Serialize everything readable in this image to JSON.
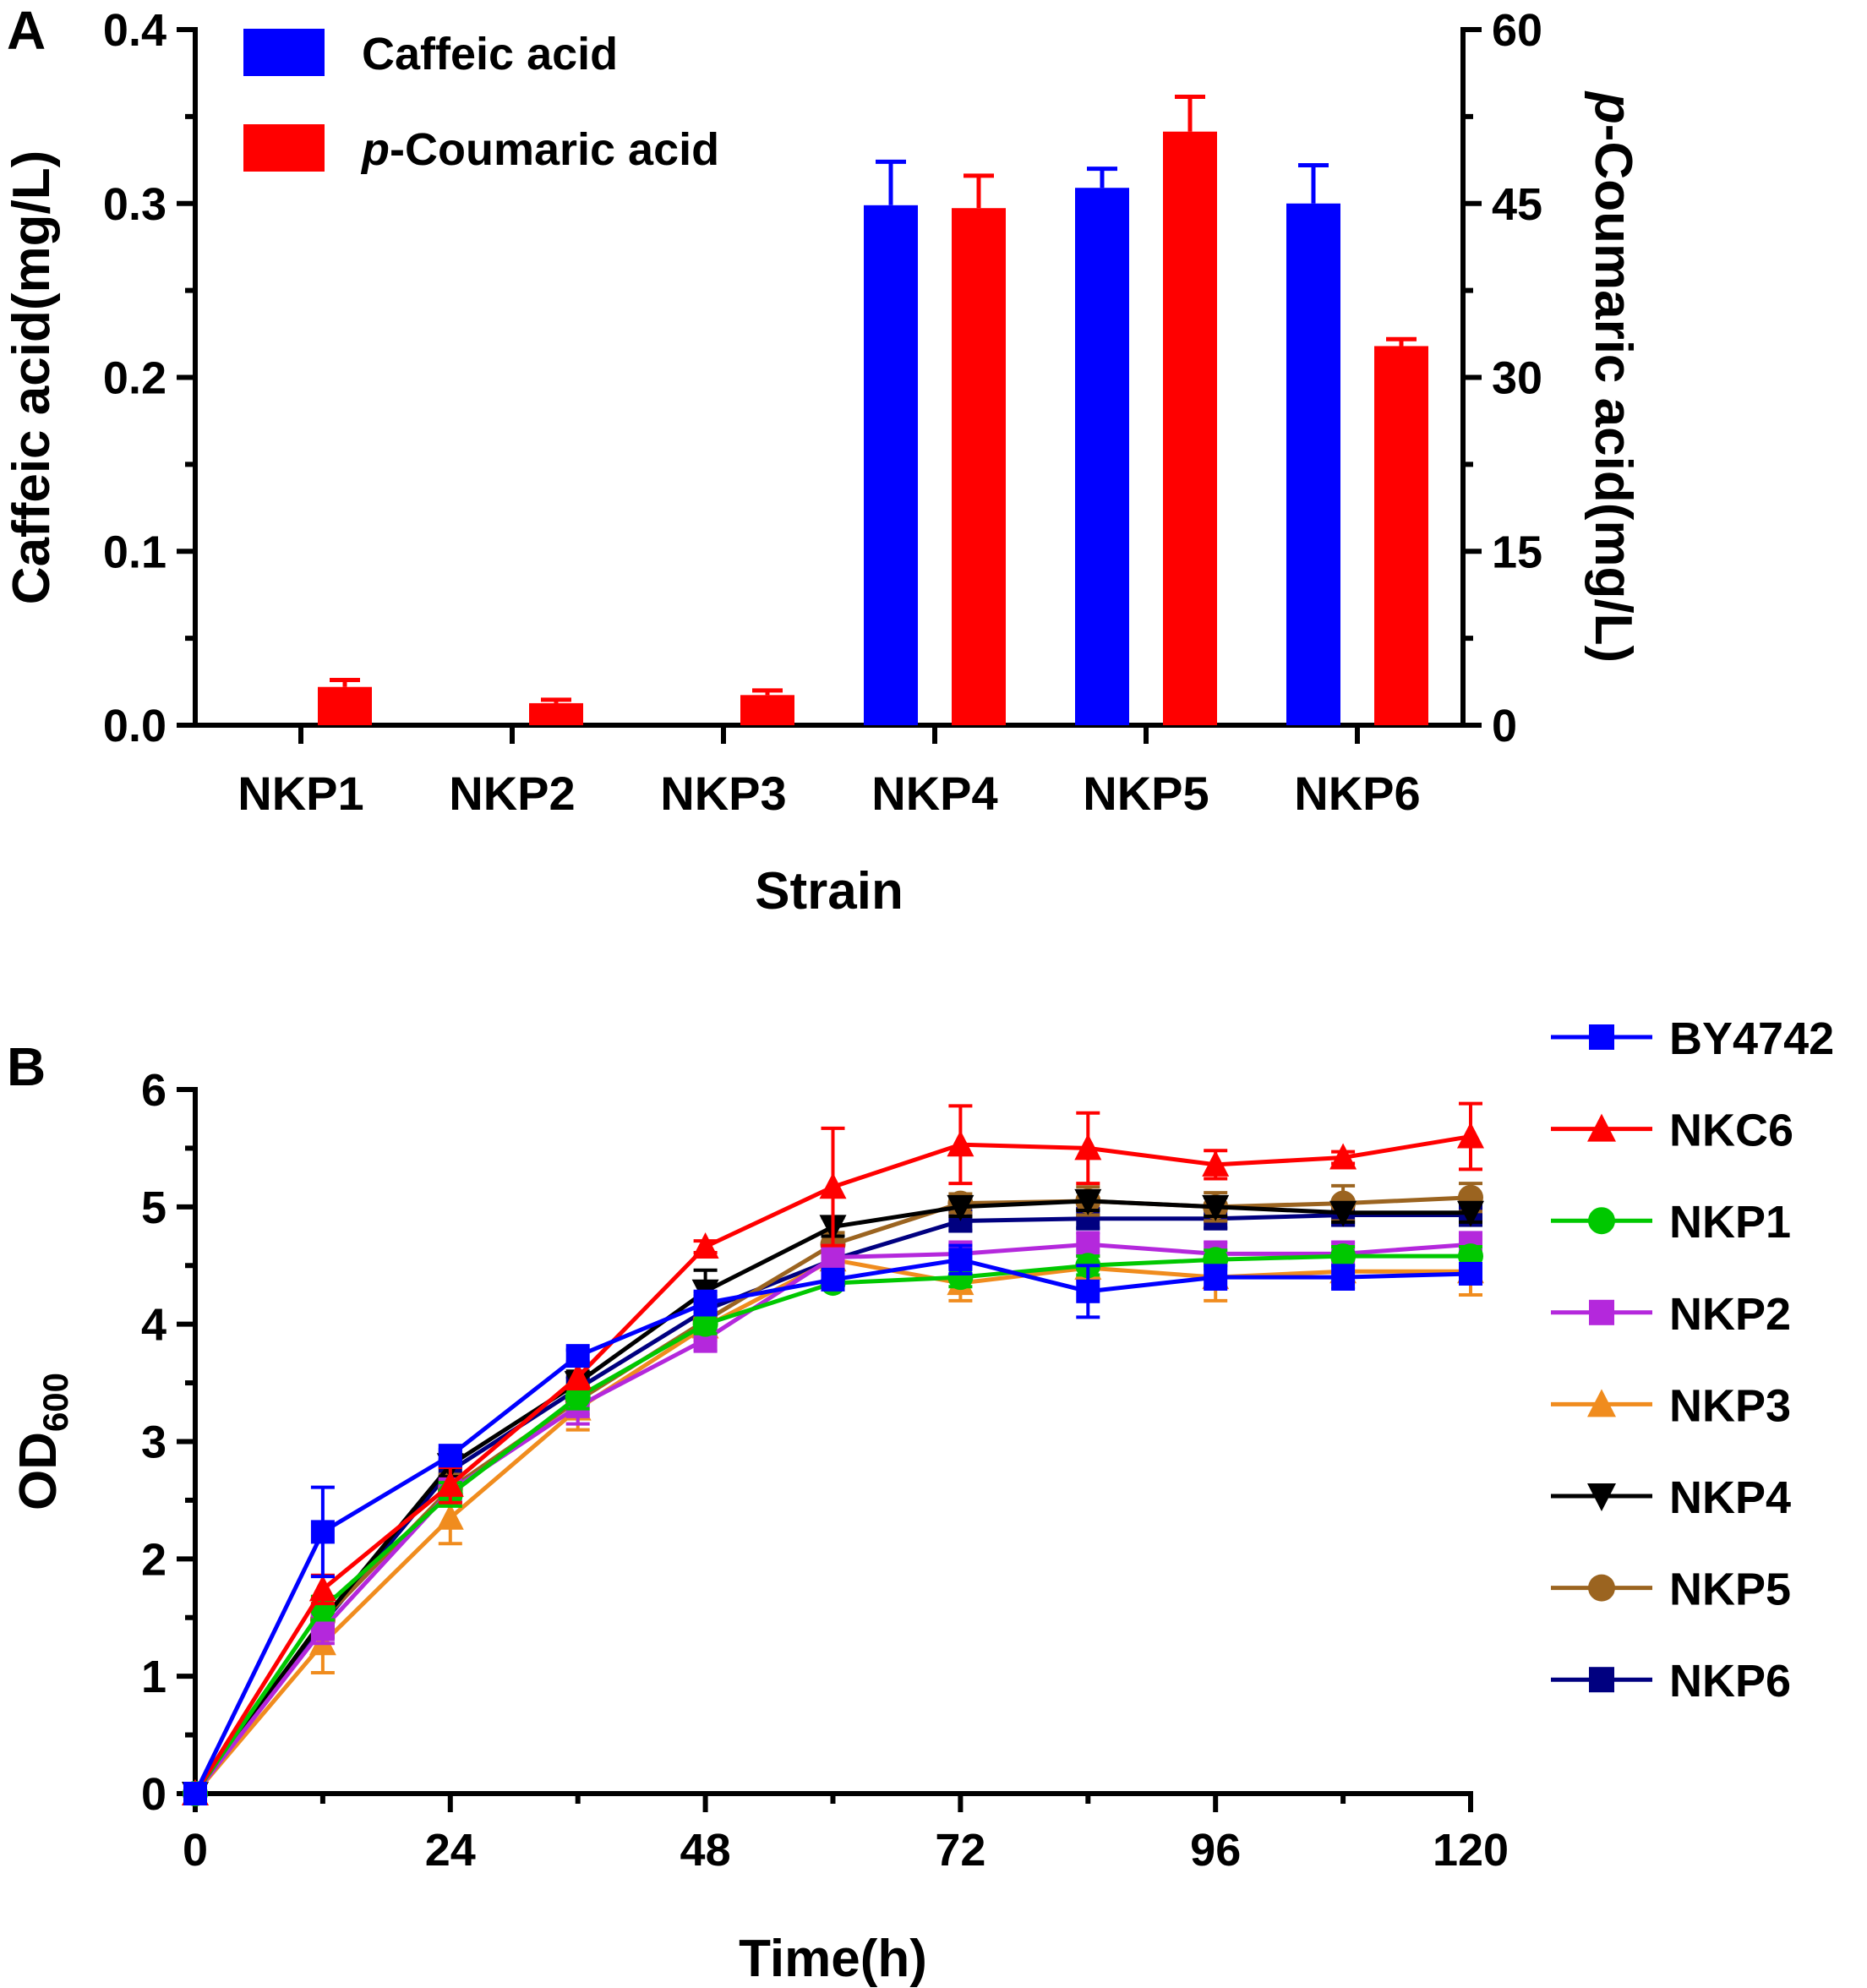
{
  "chart_data": [
    {
      "panel": "A",
      "type": "bar",
      "xlabel": "Strain",
      "ylabel": "Caffeic acid(mg/L)",
      "y2label": "p-Coumaric acid(mg/L)",
      "y2label_italic_prefix": "p",
      "y2label_rest": "-Coumaric acid(mg/L)",
      "ylim": [
        0,
        0.4
      ],
      "yticks": [
        "0.0",
        "0.1",
        "0.2",
        "0.3",
        "0.4"
      ],
      "y2lim": [
        0,
        60
      ],
      "y2ticks": [
        "0",
        "15",
        "30",
        "45",
        "60"
      ],
      "categories": [
        "NKP1",
        "NKP2",
        "NKP3",
        "NKP4",
        "NKP5",
        "NKP6"
      ],
      "series": [
        {
          "name": "Caffeic acid",
          "name_italic_prefix": "",
          "name_rest": "Caffeic acid",
          "axis": "left",
          "color": "#0000ff",
          "values": [
            0,
            0,
            0,
            0.299,
            0.309,
            0.3
          ],
          "errors": [
            0,
            0,
            0,
            0.025,
            0.011,
            0.022
          ]
        },
        {
          "name": "p-Coumaric acid",
          "name_italic_prefix": "p",
          "name_rest": "-Coumaric acid",
          "axis": "right",
          "color": "#ff0000",
          "values": [
            3.3,
            1.9,
            2.6,
            44.6,
            51.2,
            32.7
          ],
          "errors": [
            0.6,
            0.3,
            0.4,
            2.8,
            3.0,
            0.6
          ]
        }
      ],
      "legend_position": "top-left"
    },
    {
      "panel": "B",
      "type": "line",
      "xlabel": "Time(h)",
      "ylabel": "OD",
      "ylabel_sub": "600",
      "xlim": [
        0,
        120
      ],
      "xticks": [
        "0",
        "24",
        "48",
        "72",
        "96",
        "120"
      ],
      "ylim": [
        0,
        6
      ],
      "yticks": [
        "0",
        "1",
        "2",
        "3",
        "4",
        "5",
        "6"
      ],
      "x": [
        0,
        12,
        24,
        36,
        48,
        60,
        72,
        84,
        96,
        108,
        120
      ],
      "legend_position": "right",
      "series": [
        {
          "name": "BY4742",
          "color": "#0000ff",
          "marker": "square",
          "values": [
            0,
            2.23,
            2.88,
            3.73,
            4.18,
            4.38,
            4.55,
            4.28,
            4.4,
            4.4,
            4.43
          ],
          "errors": [
            0,
            0.38,
            0.05,
            0.05,
            0.1,
            0.08,
            0.12,
            0.22,
            0.1,
            0.1,
            0.08
          ]
        },
        {
          "name": "NKC6",
          "color": "#ff0000",
          "marker": "triangle-up",
          "values": [
            0,
            1.74,
            2.63,
            3.55,
            4.66,
            5.17,
            5.53,
            5.5,
            5.36,
            5.42,
            5.6
          ],
          "errors": [
            0,
            0.12,
            0.15,
            0.1,
            0.05,
            0.5,
            0.33,
            0.3,
            0.12,
            0.05,
            0.28
          ]
        },
        {
          "name": "NKP1",
          "color": "#00c800",
          "marker": "circle",
          "values": [
            0,
            1.58,
            2.55,
            3.38,
            4.0,
            4.35,
            4.4,
            4.5,
            4.55,
            4.58,
            4.58
          ],
          "errors": [
            0,
            0.1,
            0.1,
            0.1,
            0.08,
            0.05,
            0.08,
            0.08,
            0.08,
            0.08,
            0.08
          ]
        },
        {
          "name": "NKP2",
          "color": "#b428dc",
          "marker": "square",
          "values": [
            0,
            1.4,
            2.58,
            3.3,
            3.87,
            4.57,
            4.6,
            4.68,
            4.6,
            4.6,
            4.68
          ],
          "errors": [
            0,
            0.12,
            0.1,
            0.15,
            0.1,
            0.1,
            0.1,
            0.1,
            0.1,
            0.1,
            0.1
          ]
        },
        {
          "name": "NKP3",
          "color": "#f08c1e",
          "marker": "triangle-up",
          "values": [
            0,
            1.28,
            2.35,
            3.28,
            3.98,
            4.55,
            4.35,
            4.48,
            4.4,
            4.45,
            4.45
          ],
          "errors": [
            0,
            0.25,
            0.22,
            0.18,
            0.12,
            0.1,
            0.15,
            0.1,
            0.2,
            0.1,
            0.2
          ]
        },
        {
          "name": "NKP4",
          "color": "#000000",
          "marker": "triangle-down",
          "values": [
            0,
            1.48,
            2.8,
            3.5,
            4.28,
            4.83,
            5.0,
            5.05,
            5.0,
            4.95,
            4.95
          ],
          "errors": [
            0,
            0.12,
            0.1,
            0.1,
            0.18,
            0.08,
            0.08,
            0.08,
            0.08,
            0.08,
            0.08
          ]
        },
        {
          "name": "NKP5",
          "color": "#9b6420",
          "marker": "circle",
          "values": [
            0,
            1.48,
            2.6,
            3.35,
            4.03,
            4.68,
            5.03,
            5.05,
            5.0,
            5.03,
            5.08
          ],
          "errors": [
            0,
            0.12,
            0.12,
            0.12,
            0.08,
            0.1,
            0.08,
            0.12,
            0.12,
            0.15,
            0.12
          ]
        },
        {
          "name": "NKP6",
          "color": "#000080",
          "marker": "square",
          "values": [
            0,
            1.45,
            2.75,
            3.45,
            4.12,
            4.55,
            4.88,
            4.9,
            4.9,
            4.93,
            4.93
          ],
          "errors": [
            0,
            0.12,
            0.1,
            0.1,
            0.12,
            0.08,
            0.08,
            0.08,
            0.08,
            0.08,
            0.08
          ]
        }
      ]
    }
  ]
}
